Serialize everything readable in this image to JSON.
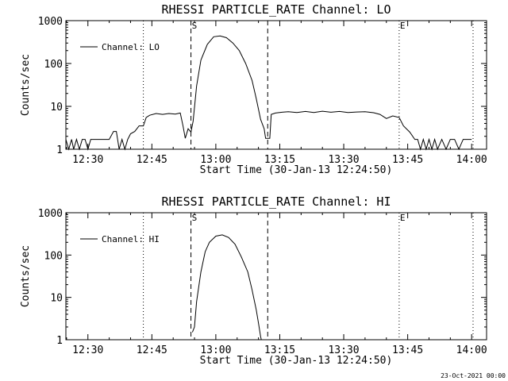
{
  "chart_data": [
    {
      "type": "line",
      "title": "RHESSI PARTICLE_RATE Channel: LO",
      "xlabel": "Start Time (30-Jan-13 12:24:50)",
      "ylabel": "Counts/sec",
      "yscale": "log",
      "ylim": [
        1,
        1000
      ],
      "xlim": [
        "12:24:50",
        "14:03:30"
      ],
      "x_ticks": [
        "12:30",
        "12:45",
        "13:00",
        "13:15",
        "13:30",
        "13:45",
        "14:00"
      ],
      "y_ticks": [
        "1",
        "10",
        "100",
        "1000"
      ],
      "legend": {
        "position": "top-left",
        "entries": [
          "Channel: LO"
        ]
      },
      "vlines": [
        {
          "time": "12:43:00",
          "style": "dotted",
          "label": ""
        },
        {
          "time": "12:54:10",
          "style": "dashed",
          "label": "S"
        },
        {
          "time": "13:12:10",
          "style": "dashed",
          "label": ""
        },
        {
          "time": "13:43:00",
          "style": "dotted",
          "label": "E"
        },
        {
          "time": "14:00:20",
          "style": "dotted",
          "label": ""
        }
      ],
      "series": [
        {
          "name": "Channel: LO",
          "points": [
            [
              "12:24:50",
              1.7
            ],
            [
              "12:25:30",
              1
            ],
            [
              "12:26:10",
              1.7
            ],
            [
              "12:26:40",
              1
            ],
            [
              "12:27:20",
              1.7
            ],
            [
              "12:28:00",
              1
            ],
            [
              "12:28:40",
              1.7
            ],
            [
              "12:29:20",
              1.7
            ],
            [
              "12:30:00",
              1
            ],
            [
              "12:30:40",
              1.7
            ],
            [
              "12:31:20",
              1.7
            ],
            [
              "12:32:00",
              1.7
            ],
            [
              "12:33:00",
              1.7
            ],
            [
              "12:34:00",
              1.7
            ],
            [
              "12:35:00",
              1.7
            ],
            [
              "12:36:00",
              2.6
            ],
            [
              "12:36:40",
              2.6
            ],
            [
              "12:37:20",
              1
            ],
            [
              "12:38:00",
              1.7
            ],
            [
              "12:38:40",
              1
            ],
            [
              "12:39:20",
              1.7
            ],
            [
              "12:40:00",
              2.3
            ],
            [
              "12:41:00",
              2.6
            ],
            [
              "12:42:00",
              3.5
            ],
            [
              "12:43:00",
              3.5
            ],
            [
              "12:43:40",
              5.5
            ],
            [
              "12:44:30",
              6.2
            ],
            [
              "12:46:00",
              6.8
            ],
            [
              "12:47:30",
              6.5
            ],
            [
              "12:49:00",
              6.8
            ],
            [
              "12:50:30",
              6.6
            ],
            [
              "12:51:40",
              7
            ],
            [
              "12:52:20",
              3.4
            ],
            [
              "12:52:50",
              1.8
            ],
            [
              "12:53:30",
              3
            ],
            [
              "12:54:10",
              2.5
            ],
            [
              "12:54:40",
              4.5
            ],
            [
              "12:55:30",
              30
            ],
            [
              "12:56:30",
              120
            ],
            [
              "12:58:00",
              280
            ],
            [
              "12:59:30",
              420
            ],
            [
              "13:01:00",
              440
            ],
            [
              "13:02:30",
              400
            ],
            [
              "13:04:00",
              300
            ],
            [
              "13:05:30",
              200
            ],
            [
              "13:07:00",
              100
            ],
            [
              "13:08:30",
              40
            ],
            [
              "13:09:30",
              15
            ],
            [
              "13:10:30",
              5
            ],
            [
              "13:11:20",
              3
            ],
            [
              "13:11:40",
              1.8
            ],
            [
              "13:12:10",
              1.8
            ],
            [
              "13:12:40",
              1.8
            ],
            [
              "13:13:00",
              6.5
            ],
            [
              "13:14:00",
              7
            ],
            [
              "13:15:30",
              7.3
            ],
            [
              "13:17:00",
              7.5
            ],
            [
              "13:19:00",
              7.2
            ],
            [
              "13:21:00",
              7.6
            ],
            [
              "13:23:00",
              7.2
            ],
            [
              "13:25:00",
              7.7
            ],
            [
              "13:27:00",
              7.3
            ],
            [
              "13:29:00",
              7.6
            ],
            [
              "13:31:00",
              7.2
            ],
            [
              "13:33:00",
              7.4
            ],
            [
              "13:35:00",
              7.5
            ],
            [
              "13:37:00",
              7.1
            ],
            [
              "13:38:30",
              6.5
            ],
            [
              "13:40:00",
              5.2
            ],
            [
              "13:41:30",
              6
            ],
            [
              "13:43:00",
              5.5
            ],
            [
              "13:44:00",
              3.5
            ],
            [
              "13:45:30",
              2.5
            ],
            [
              "13:46:40",
              1.7
            ],
            [
              "13:47:20",
              1.7
            ],
            [
              "13:48:00",
              1
            ],
            [
              "13:48:40",
              1.7
            ],
            [
              "13:49:20",
              1
            ],
            [
              "13:50:00",
              1.7
            ],
            [
              "13:50:40",
              1
            ],
            [
              "13:51:20",
              1.7
            ],
            [
              "13:52:00",
              1
            ],
            [
              "13:53:00",
              1.7
            ],
            [
              "13:54:00",
              1
            ],
            [
              "13:55:00",
              1.7
            ],
            [
              "13:56:00",
              1.7
            ],
            [
              "13:57:00",
              1
            ],
            [
              "13:58:00",
              1.7
            ],
            [
              "14:00:00",
              1.7
            ]
          ]
        }
      ]
    },
    {
      "type": "line",
      "title": "RHESSI PARTICLE_RATE Channel: HI",
      "xlabel": "Start Time (30-Jan-13 12:24:50)",
      "ylabel": "Counts/sec",
      "yscale": "log",
      "ylim": [
        1,
        1000
      ],
      "xlim": [
        "12:24:50",
        "14:03:30"
      ],
      "x_ticks": [
        "12:30",
        "12:45",
        "13:00",
        "13:15",
        "13:30",
        "13:45",
        "14:00"
      ],
      "y_ticks": [
        "1",
        "10",
        "100",
        "1000"
      ],
      "legend": {
        "position": "top-left",
        "entries": [
          "Channel: HI"
        ]
      },
      "vlines": [
        {
          "time": "12:43:00",
          "style": "dotted",
          "label": ""
        },
        {
          "time": "12:54:10",
          "style": "dashed",
          "label": "S"
        },
        {
          "time": "13:12:10",
          "style": "dashed",
          "label": ""
        },
        {
          "time": "13:43:00",
          "style": "dotted",
          "label": "E"
        },
        {
          "time": "14:00:20",
          "style": "dotted",
          "label": ""
        }
      ],
      "series": [
        {
          "name": "Channel: HI",
          "points": [
            [
              "12:54:30",
              1.5
            ],
            [
              "12:55:00",
              2
            ],
            [
              "12:55:30",
              8
            ],
            [
              "12:56:30",
              40
            ],
            [
              "12:57:30",
              120
            ],
            [
              "12:58:30",
              200
            ],
            [
              "13:00:00",
              280
            ],
            [
              "13:01:30",
              300
            ],
            [
              "13:03:00",
              260
            ],
            [
              "13:04:30",
              180
            ],
            [
              "13:06:00",
              90
            ],
            [
              "13:07:30",
              40
            ],
            [
              "13:08:30",
              15
            ],
            [
              "13:09:30",
              5
            ],
            [
              "13:10:00",
              2.5
            ],
            [
              "13:10:30",
              1.2
            ],
            [
              "13:10:40",
              1
            ]
          ]
        }
      ]
    }
  ],
  "footer": {
    "date": "23-Oct-2021 00:00"
  }
}
